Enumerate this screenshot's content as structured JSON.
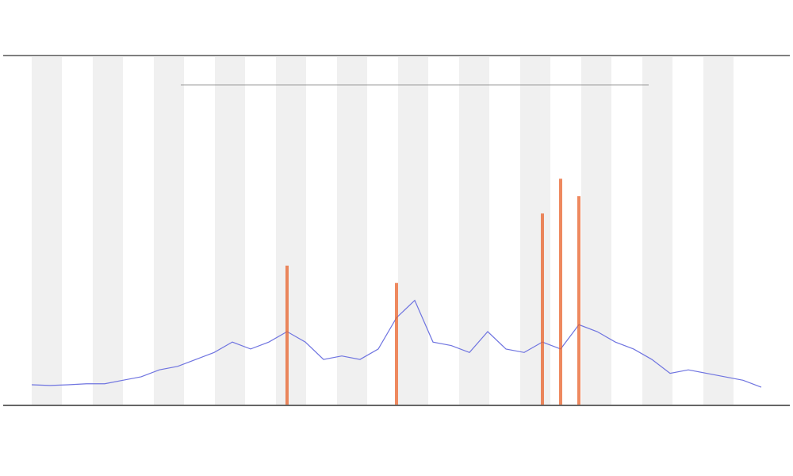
{
  "chart_data": {
    "type": "line",
    "x": [
      0,
      2.5,
      5,
      7.5,
      10,
      12.5,
      15,
      17.5,
      20,
      22.5,
      25,
      27.5,
      30,
      32.5,
      35,
      37.5,
      40,
      42.5,
      45,
      47.5,
      50,
      52.5,
      55,
      57.5,
      60,
      62.5,
      65,
      67.5,
      70,
      72.5,
      75,
      77.5,
      80,
      82.5,
      85,
      87.5,
      90,
      92.5,
      95,
      97.5,
      100
    ],
    "xlim": [
      0,
      100
    ],
    "ylim": [
      0,
      100
    ],
    "series": [
      {
        "color": "#6f74e0",
        "values": [
          5.7,
          5.5,
          5.7,
          6,
          6,
          7,
          8,
          10,
          11,
          13,
          15,
          18,
          16,
          18,
          21,
          18,
          13,
          14,
          13,
          16,
          25,
          30,
          18,
          17,
          15,
          21,
          16,
          15,
          18,
          16,
          23,
          21,
          18,
          16,
          13,
          9,
          10,
          9,
          8,
          7,
          5
        ]
      },
      {
        "type": "bar",
        "color": "#e8622a",
        "values": [
          null,
          null,
          null,
          null,
          null,
          null,
          null,
          null,
          null,
          null,
          null,
          null,
          null,
          null,
          40,
          null,
          null,
          null,
          null,
          null,
          35,
          null,
          null,
          null,
          null,
          null,
          null,
          null,
          55,
          65,
          60,
          null,
          null,
          null,
          null,
          null,
          null,
          null,
          null,
          null,
          null
        ]
      }
    ]
  }
}
